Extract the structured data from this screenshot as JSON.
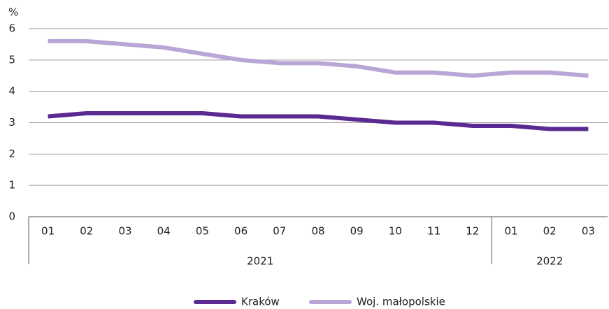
{
  "chart_data": {
    "type": "line",
    "y_unit": "%",
    "category_groups": [
      {
        "label": "2021",
        "categories": [
          "01",
          "02",
          "03",
          "04",
          "05",
          "06",
          "07",
          "08",
          "09",
          "10",
          "11",
          "12"
        ]
      },
      {
        "label": "2022",
        "categories": [
          "01",
          "02",
          "03"
        ]
      }
    ],
    "series": [
      {
        "name": "Kraków",
        "color": "#5b2a91",
        "values": [
          3.2,
          3.3,
          3.3,
          3.3,
          3.3,
          3.2,
          3.2,
          3.2,
          3.1,
          3.0,
          3.0,
          2.9,
          2.9,
          2.8,
          2.8
        ]
      },
      {
        "name": "Woj. małopolskie",
        "color": "#b9a6d6",
        "values": [
          5.6,
          5.6,
          5.5,
          5.4,
          5.2,
          5.0,
          4.9,
          4.9,
          4.8,
          4.6,
          4.6,
          4.5,
          4.6,
          4.6,
          4.5
        ]
      }
    ],
    "ylim": [
      0,
      6
    ],
    "yticks": [
      0,
      1,
      2,
      3,
      4,
      5,
      6
    ],
    "grid": true,
    "legend": "bottom"
  }
}
